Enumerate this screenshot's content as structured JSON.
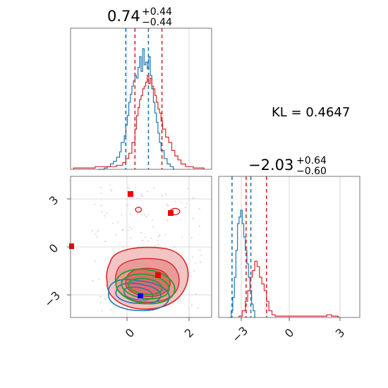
{
  "chart_data": [
    {
      "type": "histogram",
      "panel": "top-left",
      "title": {
        "main": "0.74",
        "upper": "+0.44",
        "lower": "−0.44"
      },
      "xlim": [
        -1.8,
        2.8
      ],
      "grid": true,
      "series": [
        {
          "name": "",
          "color": "#1f77b4",
          "quantiles": [
            0.0,
            0.74
          ],
          "bins": [
            [
              -0.9,
              0.0
            ],
            [
              -0.8,
              0.0
            ],
            [
              -0.7,
              0.01
            ],
            [
              -0.6,
              0.02
            ],
            [
              -0.5,
              0.04
            ],
            [
              -0.4,
              0.06
            ],
            [
              -0.3,
              0.09
            ],
            [
              -0.2,
              0.13
            ],
            [
              -0.15,
              0.2
            ],
            [
              -0.05,
              0.25
            ],
            [
              0.0,
              0.33
            ],
            [
              0.05,
              0.4
            ],
            [
              0.1,
              0.5
            ],
            [
              0.15,
              0.56
            ],
            [
              0.2,
              0.62
            ],
            [
              0.25,
              0.66
            ],
            [
              0.3,
              0.7
            ],
            [
              0.35,
              0.68
            ],
            [
              0.4,
              0.76
            ],
            [
              0.45,
              0.84
            ],
            [
              0.5,
              0.73
            ],
            [
              0.55,
              0.9
            ],
            [
              0.6,
              0.78
            ],
            [
              0.65,
              0.8
            ],
            [
              0.7,
              0.75
            ],
            [
              0.75,
              0.84
            ],
            [
              0.8,
              0.7
            ],
            [
              0.85,
              0.6
            ],
            [
              0.9,
              0.5
            ],
            [
              0.95,
              0.42
            ],
            [
              1.0,
              0.35
            ],
            [
              1.05,
              0.27
            ],
            [
              1.1,
              0.2
            ],
            [
              1.15,
              0.14
            ],
            [
              1.25,
              0.08
            ],
            [
              1.35,
              0.04
            ],
            [
              1.45,
              0.02
            ],
            [
              1.55,
              0.0
            ]
          ]
        },
        {
          "name": "",
          "color": "#d62728",
          "quantiles": [
            0.3,
            1.18
          ],
          "bins": [
            [
              -1.7,
              0.01
            ],
            [
              -1.4,
              0.01
            ],
            [
              -1.0,
              0.02
            ],
            [
              -0.6,
              0.02
            ],
            [
              -0.3,
              0.03
            ],
            [
              -0.1,
              0.05
            ],
            [
              0.0,
              0.08
            ],
            [
              0.1,
              0.12
            ],
            [
              0.2,
              0.2
            ],
            [
              0.3,
              0.3
            ],
            [
              0.35,
              0.4
            ],
            [
              0.4,
              0.46
            ],
            [
              0.45,
              0.52
            ],
            [
              0.5,
              0.55
            ],
            [
              0.55,
              0.6
            ],
            [
              0.6,
              0.62
            ],
            [
              0.65,
              0.65
            ],
            [
              0.7,
              0.7
            ],
            [
              0.75,
              0.64
            ],
            [
              0.8,
              0.68
            ],
            [
              0.85,
              0.62
            ],
            [
              0.9,
              0.6
            ],
            [
              0.95,
              0.55
            ],
            [
              1.0,
              0.5
            ],
            [
              1.05,
              0.45
            ],
            [
              1.1,
              0.42
            ],
            [
              1.15,
              0.36
            ],
            [
              1.2,
              0.3
            ],
            [
              1.3,
              0.24
            ],
            [
              1.4,
              0.2
            ],
            [
              1.5,
              0.14
            ],
            [
              1.6,
              0.1
            ],
            [
              1.7,
              0.07
            ],
            [
              1.8,
              0.04
            ],
            [
              1.95,
              0.02
            ],
            [
              2.2,
              0.01
            ],
            [
              2.5,
              0.01
            ]
          ]
        }
      ]
    },
    {
      "type": "contour",
      "panel": "bottom-left",
      "xlim": [
        -1.8,
        2.8
      ],
      "ylim": [
        -4.4,
        1.7
      ],
      "xticks": [
        "0",
        "2"
      ],
      "yticks": [
        "3",
        "0",
        "−3"
      ],
      "grid": true,
      "series": [
        {
          "name": "",
          "color": "#1f77b4",
          "center": [
            0.5,
            -3.0
          ],
          "radii": [
            0.85,
            0.55
          ],
          "marker": "square"
        },
        {
          "name": "",
          "color": "#d62728",
          "center": [
            0.8,
            -2.0
          ],
          "radii": [
            1.5,
            1.3
          ],
          "markers": [
            [
              0.1,
              3.2
            ],
            [
              1.4,
              2.1
            ],
            [
              -1.8,
              0.0
            ],
            [
              1.0,
              -1.7
            ]
          ]
        },
        {
          "name": "",
          "color": "#2ca02c",
          "center": [
            0.7,
            -2.5
          ],
          "radii": [
            1.25,
            0.9
          ]
        }
      ]
    },
    {
      "type": "histogram",
      "panel": "bottom-right",
      "title": {
        "main": "−2.03",
        "upper": "+0.64",
        "lower": "−0.60"
      },
      "xlim": [
        -4.4,
        4.6
      ],
      "xticks": [
        "−3",
        "0",
        "3"
      ],
      "grid": true,
      "series": [
        {
          "name": "",
          "color": "#1f77b4",
          "quantiles": [
            -3.55,
            -2.35
          ],
          "bins": [
            [
              -3.7,
              0.0
            ],
            [
              -3.6,
              0.05
            ],
            [
              -3.5,
              0.15
            ],
            [
              -3.4,
              0.3
            ],
            [
              -3.3,
              0.5
            ],
            [
              -3.2,
              0.7
            ],
            [
              -3.1,
              0.75
            ],
            [
              -3.0,
              0.8
            ],
            [
              -2.9,
              0.7
            ],
            [
              -2.8,
              0.6
            ],
            [
              -2.7,
              0.5
            ],
            [
              -2.6,
              0.4
            ],
            [
              -2.5,
              0.3
            ],
            [
              -2.4,
              0.2
            ],
            [
              -2.3,
              0.1
            ],
            [
              -2.2,
              0.05
            ],
            [
              -2.1,
              0.0
            ]
          ]
        },
        {
          "name": "",
          "color": "#d62728",
          "quantiles": [
            -2.65,
            -1.35
          ],
          "bins": [
            [
              -3.1,
              0.01
            ],
            [
              -2.9,
              0.05
            ],
            [
              -2.7,
              0.12
            ],
            [
              -2.55,
              0.2
            ],
            [
              -2.4,
              0.3
            ],
            [
              -2.25,
              0.35
            ],
            [
              -2.1,
              0.42
            ],
            [
              -1.95,
              0.38
            ],
            [
              -1.8,
              0.3
            ],
            [
              -1.65,
              0.25
            ],
            [
              -1.5,
              0.2
            ],
            [
              -1.35,
              0.12
            ],
            [
              -1.2,
              0.05
            ],
            [
              -1.0,
              0.02
            ],
            [
              -0.8,
              0.01
            ],
            [
              2.2,
              0.01
            ],
            [
              2.5,
              0.02
            ],
            [
              2.8,
              0.01
            ],
            [
              3.2,
              0.005
            ]
          ]
        }
      ]
    }
  ],
  "annotation": {
    "kl": "KL = 0.4647"
  }
}
